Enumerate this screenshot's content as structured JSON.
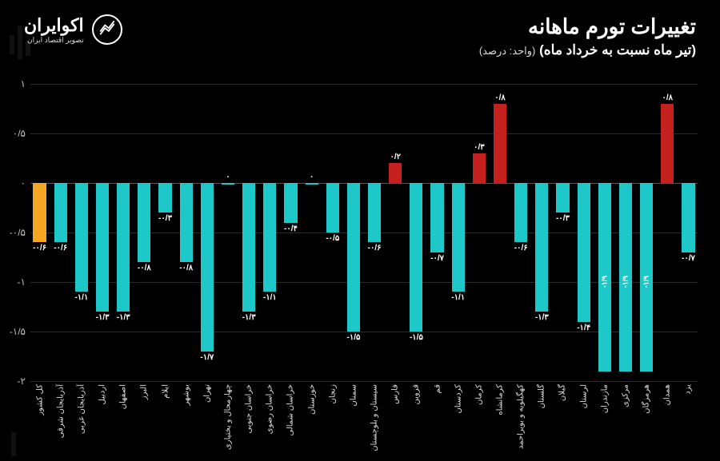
{
  "header": {
    "title": "تغییرات تورم ماهانه",
    "subtitle": "(تیر ماه نسبت به خرداد ماه)",
    "unit": "(واحد: درصد)"
  },
  "logo": {
    "brand": "اکوایران",
    "tagline": "تصویر اقتصاد ایران"
  },
  "chart": {
    "type": "bar",
    "ymin": -2,
    "ymax": 1,
    "ytick_step": 0.5,
    "yticks": [
      {
        "v": 1,
        "label": "۱"
      },
      {
        "v": 0.5,
        "label": "۰/۵"
      },
      {
        "v": 0,
        "label": "۰"
      },
      {
        "v": -0.5,
        "label": "-۰/۵"
      },
      {
        "v": -1,
        "label": "-۱"
      },
      {
        "v": -1.5,
        "label": "-۱/۵"
      },
      {
        "v": -2,
        "label": "-۲"
      }
    ],
    "colors": {
      "highlight": "#f5a623",
      "positive": "#c4201d",
      "negative": "#1ec8c8",
      "grid": "#2a2a2a",
      "zero": "#555555",
      "background": "#000000"
    },
    "bars": [
      {
        "category": "کل کشور",
        "value": -0.6,
        "label": "-۰/۶",
        "color": "#f5a623"
      },
      {
        "category": "آذربایجان شرقی",
        "value": -0.6,
        "label": "-۰/۶",
        "color": "#1ec8c8"
      },
      {
        "category": "آذربایجان غربی",
        "value": -1.1,
        "label": "-۱/۱",
        "color": "#1ec8c8"
      },
      {
        "category": "اردبیل",
        "value": -1.3,
        "label": "-۱/۳",
        "color": "#1ec8c8"
      },
      {
        "category": "اصفهان",
        "value": -1.3,
        "label": "-۱/۳",
        "color": "#1ec8c8"
      },
      {
        "category": "البرز",
        "value": -0.8,
        "label": "-۰/۸",
        "color": "#1ec8c8"
      },
      {
        "category": "ایلام",
        "value": -0.3,
        "label": "-۰/۳",
        "color": "#1ec8c8"
      },
      {
        "category": "بوشهر",
        "value": -0.8,
        "label": "-۰/۸",
        "color": "#1ec8c8"
      },
      {
        "category": "تهران",
        "value": -1.7,
        "label": "-۱/۷",
        "color": "#1ec8c8"
      },
      {
        "category": "چهارمحال و بختیاری",
        "value": 0,
        "label": "۰",
        "color": "#1ec8c8"
      },
      {
        "category": "خراسان جنوبی",
        "value": -1.3,
        "label": "-۱/۳",
        "color": "#1ec8c8"
      },
      {
        "category": "خراسان رضوی",
        "value": -1.1,
        "label": "-۱/۱",
        "color": "#1ec8c8"
      },
      {
        "category": "خراسان شمالی",
        "value": -0.4,
        "label": "-۰/۴",
        "color": "#1ec8c8"
      },
      {
        "category": "خوزستان",
        "value": 0,
        "label": "۰",
        "color": "#1ec8c8"
      },
      {
        "category": "زنجان",
        "value": -0.5,
        "label": "-۰/۵",
        "color": "#1ec8c8"
      },
      {
        "category": "سمنان",
        "value": -1.5,
        "label": "-۱/۵",
        "color": "#1ec8c8"
      },
      {
        "category": "سیستان و بلوچستان",
        "value": -0.6,
        "label": "-۰/۶",
        "color": "#1ec8c8"
      },
      {
        "category": "فارس",
        "value": 0.2,
        "label": "۰/۲",
        "color": "#c4201d"
      },
      {
        "category": "قزوین",
        "value": -1.5,
        "label": "-۱/۵",
        "color": "#1ec8c8"
      },
      {
        "category": "قم",
        "value": -0.7,
        "label": "-۰/۷",
        "color": "#1ec8c8"
      },
      {
        "category": "کردستان",
        "value": -1.1,
        "label": "-۱/۱",
        "color": "#1ec8c8"
      },
      {
        "category": "کرمان",
        "value": 0.3,
        "label": "۰/۳",
        "color": "#c4201d"
      },
      {
        "category": "کرمانشاه",
        "value": 0.8,
        "label": "۰/۸",
        "color": "#c4201d"
      },
      {
        "category": "کهگیلویه و بویراحمد",
        "value": -0.6,
        "label": "-۰/۶",
        "color": "#1ec8c8"
      },
      {
        "category": "گلستان",
        "value": -1.3,
        "label": "-۱/۳",
        "color": "#1ec8c8"
      },
      {
        "category": "گیلان",
        "value": -0.3,
        "label": "-۰/۳",
        "color": "#1ec8c8"
      },
      {
        "category": "لرستان",
        "value": -1.4,
        "label": "-۱/۴",
        "color": "#1ec8c8"
      },
      {
        "category": "مازندران",
        "value": -1.9,
        "label": "-۱/۹",
        "color": "#1ec8c8",
        "sideLabel": true
      },
      {
        "category": "مرکزی",
        "value": -1.9,
        "label": "-۱/۹",
        "color": "#1ec8c8",
        "sideLabel": true
      },
      {
        "category": "هرمزگان",
        "value": -1.9,
        "label": "-۱/۹",
        "color": "#1ec8c8",
        "sideLabel": true
      },
      {
        "category": "همدان",
        "value": 0.8,
        "label": "۰/۸",
        "color": "#c4201d"
      },
      {
        "category": "یزد",
        "value": -0.7,
        "label": "-۰/۷",
        "color": "#1ec8c8"
      }
    ]
  }
}
